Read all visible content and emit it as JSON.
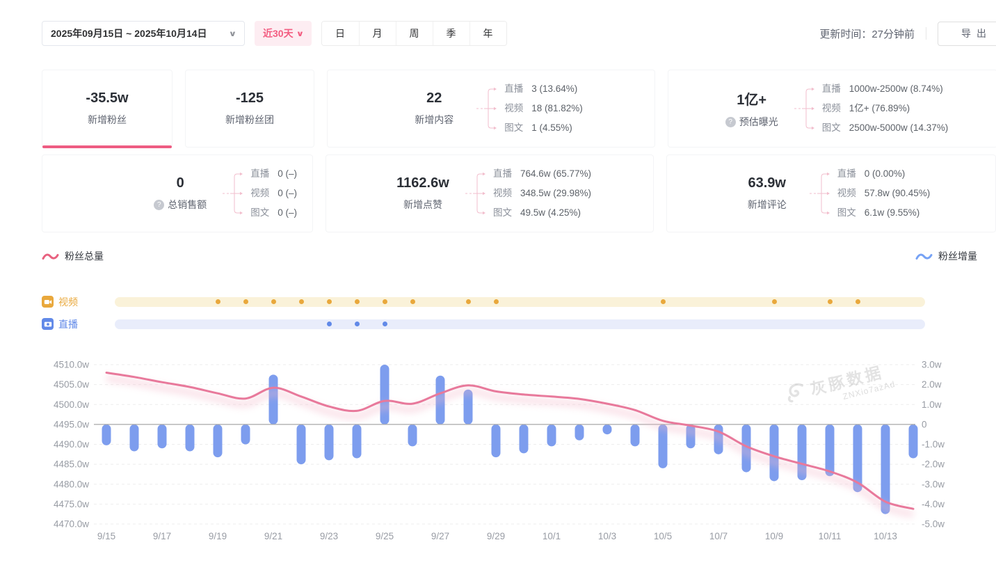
{
  "icons": {
    "chevron_down": "∨",
    "question": "?"
  },
  "toolbar": {
    "date_range": "2025年09月15日 ~ 2025年10月14日",
    "quick_range": "近30天",
    "period_tabs": [
      "日",
      "月",
      "周",
      "季",
      "年"
    ],
    "update_time": "更新时间：27分钟前",
    "export_label": "导出"
  },
  "stats": {
    "cards": [
      {
        "value": "-35.5w",
        "label": "新增粉丝"
      },
      {
        "value": "-125",
        "label": "新增粉丝团"
      },
      {
        "value": "22",
        "label": "新增内容",
        "rows": [
          {
            "label": "直播",
            "value": "3 (13.64%)"
          },
          {
            "label": "视频",
            "value": "18 (81.82%)"
          },
          {
            "label": "图文",
            "value": "1 (4.55%)"
          }
        ]
      },
      {
        "value": "1亿+",
        "label": "预估曝光",
        "rows": [
          {
            "label": "直播",
            "value": "1000w-2500w (8.74%)"
          },
          {
            "label": "视频",
            "value": "1亿+ (76.89%)"
          },
          {
            "label": "图文",
            "value": "2500w-5000w (14.37%)"
          }
        ]
      },
      {
        "value": "0",
        "label": "总销售额",
        "rows": [
          {
            "label": "直播",
            "value": "0 (–)"
          },
          {
            "label": "视频",
            "value": "0 (–)"
          },
          {
            "label": "图文",
            "value": "0 (–)"
          }
        ]
      },
      {
        "value": "1162.6w",
        "label": "新增点赞",
        "rows": [
          {
            "label": "直播",
            "value": "764.6w (65.77%)"
          },
          {
            "label": "视频",
            "value": "348.5w (29.98%)"
          },
          {
            "label": "图文",
            "value": "49.5w (4.25%)"
          }
        ]
      },
      {
        "value": "63.9w",
        "label": "新增评论",
        "rows": [
          {
            "label": "直播",
            "value": "0 (0.00%)"
          },
          {
            "label": "视频",
            "value": "57.8w (90.45%)"
          },
          {
            "label": "图文",
            "value": "6.1w (9.55%)"
          }
        ]
      }
    ]
  },
  "chart_data": {
    "type": "line+bar",
    "categories": [
      "9/15",
      "9/16",
      "9/17",
      "9/18",
      "9/19",
      "9/20",
      "9/21",
      "9/22",
      "9/23",
      "9/24",
      "9/25",
      "9/26",
      "9/27",
      "9/28",
      "9/29",
      "9/30",
      "10/1",
      "10/2",
      "10/3",
      "10/4",
      "10/5",
      "10/6",
      "10/7",
      "10/8",
      "10/9",
      "10/10",
      "10/11",
      "10/12",
      "10/13",
      "10/14"
    ],
    "x_tick_labels": [
      "9/15",
      "9/17",
      "9/19",
      "9/21",
      "9/23",
      "9/25",
      "9/27",
      "9/29",
      "10/1",
      "10/3",
      "10/5",
      "10/7",
      "10/9",
      "10/11",
      "10/13"
    ],
    "left_axis": {
      "ticks": [
        "4510.0w",
        "4505.0w",
        "4500.0w",
        "4495.0w",
        "4490.0w",
        "4485.0w",
        "4480.0w",
        "4475.0w",
        "4470.0w"
      ],
      "max": 4510,
      "min": 4470,
      "tick_step": 5,
      "unit": "w"
    },
    "right_axis": {
      "ticks": [
        "3.0w",
        "2.0w",
        "1.0w",
        "0",
        "-1.0w",
        "-2.0w",
        "-3.0w",
        "-4.0w",
        "-5.0w"
      ],
      "max": 3,
      "min": -5,
      "tick_step": 1,
      "unit": "w"
    },
    "series": [
      {
        "name": "粉丝总量",
        "type": "line",
        "axis": "left",
        "color": "#E8799B",
        "values": [
          4508.0,
          4506.9,
          4505.6,
          4504.4,
          4502.8,
          4501.5,
          4504.2,
          4502.0,
          4499.5,
          4498.4,
          4500.9,
          4500.2,
          4502.8,
          4504.8,
          4503.3,
          4502.5,
          4502.0,
          4501.4,
          4500.2,
          4498.6,
          4495.9,
          4494.7,
          4493.2,
          4489.5,
          4487.0,
          4485.1,
          4483.2,
          4480.4,
          4475.6,
          4473.8
        ]
      },
      {
        "name": "粉丝增量",
        "type": "bar",
        "axis": "right",
        "color": "#7D9DEE",
        "values": [
          -1.05,
          -1.35,
          -1.2,
          -1.35,
          -1.65,
          -1.0,
          2.5,
          -2.0,
          -1.8,
          -1.7,
          3.0,
          -1.1,
          2.45,
          1.75,
          -1.65,
          -1.45,
          -1.1,
          -0.8,
          -0.5,
          -1.1,
          -2.2,
          -1.2,
          -1.5,
          -2.4,
          -2.85,
          -2.8,
          -2.6,
          -3.4,
          -4.5,
          -1.7
        ]
      }
    ],
    "legend": [
      {
        "name": "粉丝总量",
        "color": "#E8617F"
      },
      {
        "name": "粉丝增量",
        "color": "#76A2F5"
      }
    ],
    "event_tracks": [
      {
        "label": "视频",
        "color": "#E9A83C",
        "track_color": "#FAF2D9",
        "dots": [
          "9/19",
          "9/20",
          "9/21",
          "9/22",
          "9/23",
          "9/24",
          "9/25",
          "9/26",
          "9/28",
          "9/29",
          "10/5",
          "10/9",
          "10/11",
          "10/12"
        ]
      },
      {
        "label": "直播",
        "color": "#6189E8",
        "track_color": "#E9EDFB",
        "dots": [
          "9/23",
          "9/24",
          "9/25"
        ]
      }
    ],
    "watermark": {
      "brand": "灰豚数据",
      "code": "ZNXio7azAd"
    },
    "grid": true,
    "legend_position": "top-left / top-right"
  }
}
